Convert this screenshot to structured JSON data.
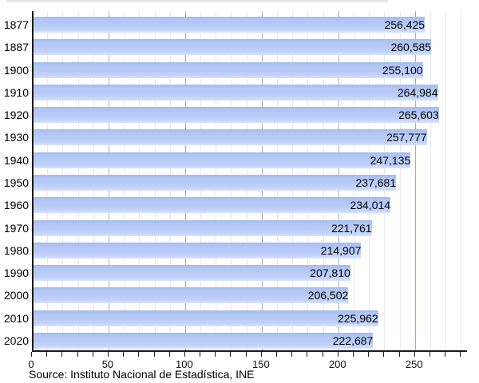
{
  "chart_data": {
    "type": "bar",
    "orientation": "horizontal",
    "title": "",
    "xlabel": "",
    "ylabel": "",
    "categories": [
      "1877",
      "1887",
      "1900",
      "1910",
      "1920",
      "1930",
      "1940",
      "1950",
      "1960",
      "1970",
      "1980",
      "1990",
      "2000",
      "2010",
      "2020"
    ],
    "values": [
      256425,
      260585,
      255100,
      264984,
      265603,
      257777,
      247135,
      237681,
      234014,
      221761,
      214907,
      207810,
      206502,
      225962,
      222687
    ],
    "value_labels": [
      "256,425",
      "260,585",
      "255,100",
      "264,984",
      "265,603",
      "257,777",
      "247,135",
      "237,681",
      "234,014",
      "221,761",
      "214,907",
      "207,810",
      "206,502",
      "225,962",
      "222,687"
    ],
    "x_axis": {
      "unit": "thousands",
      "min": 0,
      "max": 284,
      "major_tick_labels": [
        "0",
        "50",
        "100",
        "150",
        "200",
        "250"
      ],
      "major_tick_values": [
        0,
        50,
        100,
        150,
        200,
        250
      ],
      "minor_tick_step": 10,
      "minor_tick_end": 280
    },
    "grid": true,
    "legend": null,
    "source": "Source: Instituto Nacional de Estadística, INE"
  },
  "colors": {
    "bar_fill": "#b8cbf7",
    "bar_fill_top": "#a3bcf1",
    "bar_fill_bottom": "#dbe5fc",
    "gridline_minor": "#e4e9f1",
    "gridline_major": "#a9aeb6",
    "axis": "#1a1a1a",
    "text": "#000000",
    "background": "#ffffff"
  }
}
